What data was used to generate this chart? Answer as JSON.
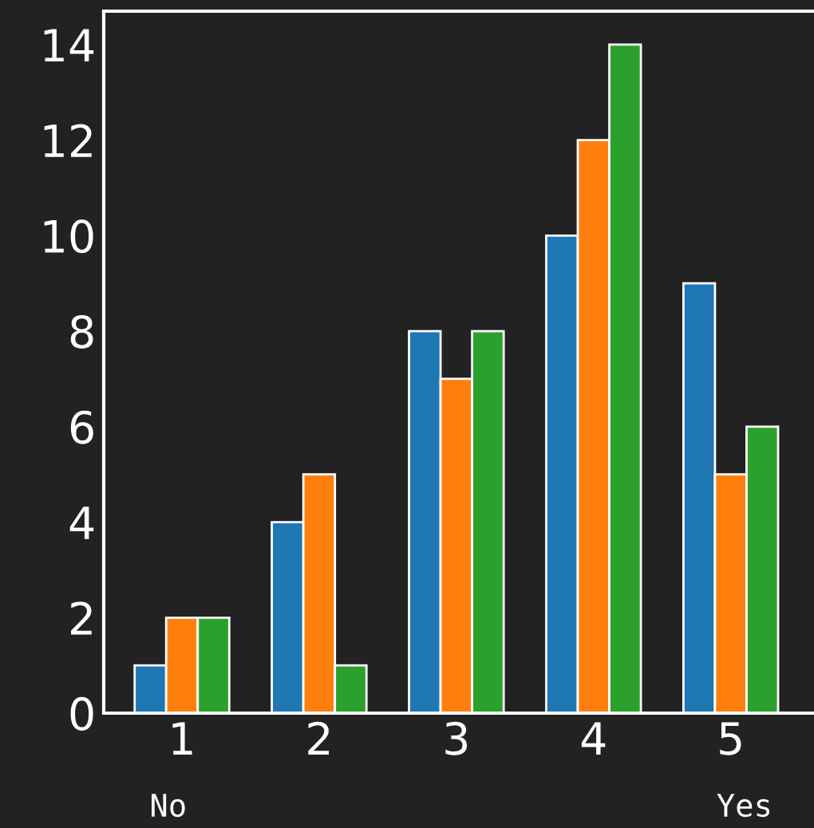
{
  "chart_data": {
    "type": "bar",
    "categories": [
      "1",
      "2",
      "3",
      "4",
      "5"
    ],
    "series": [
      {
        "color": "#1f77b4",
        "values": [
          1,
          4,
          8,
          10,
          9
        ]
      },
      {
        "color": "#ff7f0e",
        "values": [
          2,
          5,
          7,
          12,
          5
        ]
      },
      {
        "color": "#2ca02c",
        "values": [
          2,
          1,
          8,
          14,
          6
        ]
      }
    ],
    "ylim": [
      0,
      14.7
    ],
    "yticks": [
      0,
      2,
      4,
      6,
      8,
      10,
      12,
      14
    ],
    "grid": false,
    "legend": false,
    "annotations": [
      "No",
      "Yes"
    ]
  }
}
